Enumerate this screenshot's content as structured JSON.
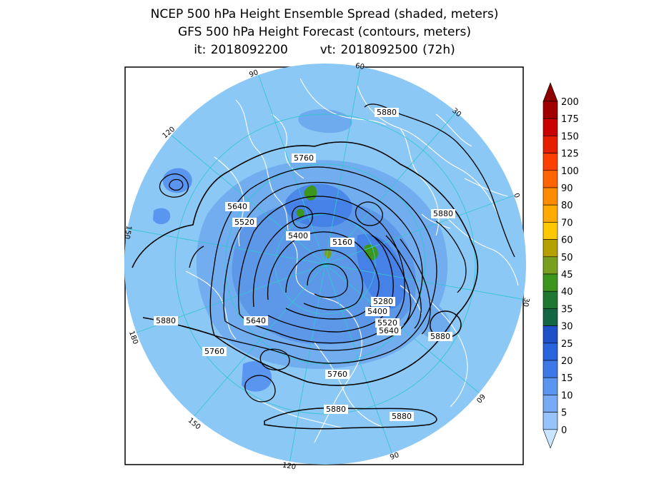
{
  "title": {
    "line1": "NCEP 500 hPa Height Ensemble Spread (shaded, meters)",
    "line2": "GFS 500 hPa Height Forecast (contours, meters)",
    "line3_it": "it: 2018092200",
    "line3_vt": "vt: 2018092500 (72h)"
  },
  "colors": {
    "background": "#ffffff",
    "ocean_base": "#8cc8f5",
    "land_lines": "#ffffff",
    "graticule": "#36c5d2",
    "contour": "#000000",
    "frame": "#000000"
  },
  "map": {
    "projection": "north polar stereographic",
    "longitude_labels": [
      "60",
      "30",
      "0",
      "30",
      "60",
      "90",
      "120",
      "150",
      "180",
      "150",
      "120",
      "90"
    ],
    "contour_labels": [
      "5880",
      "5760",
      "5640",
      "5520",
      "5400",
      "5160",
      "5880",
      "5280",
      "5400",
      "5520",
      "5640",
      "5880",
      "5880",
      "5640",
      "5760",
      "5760",
      "5880",
      "5880"
    ]
  },
  "legend": {
    "type": "colorbar",
    "levels": [
      "200",
      "175",
      "150",
      "125",
      "100",
      "90",
      "80",
      "70",
      "60",
      "50",
      "45",
      "40",
      "35",
      "30",
      "25",
      "20",
      "15",
      "10",
      "5",
      "0"
    ],
    "colors": [
      "#a00000",
      "#c80000",
      "#e61e00",
      "#ff4000",
      "#ff6400",
      "#ff8c00",
      "#ffaa00",
      "#ffc800",
      "#b4a000",
      "#78a01e",
      "#3c961e",
      "#1e7832",
      "#146446",
      "#1e50c8",
      "#2864dc",
      "#3c78e6",
      "#5a96f0",
      "#78aaf5",
      "#96c3fa",
      "#b4d7ff"
    ],
    "min_color": "#c8e6ff",
    "max_color": "#8c0000"
  }
}
